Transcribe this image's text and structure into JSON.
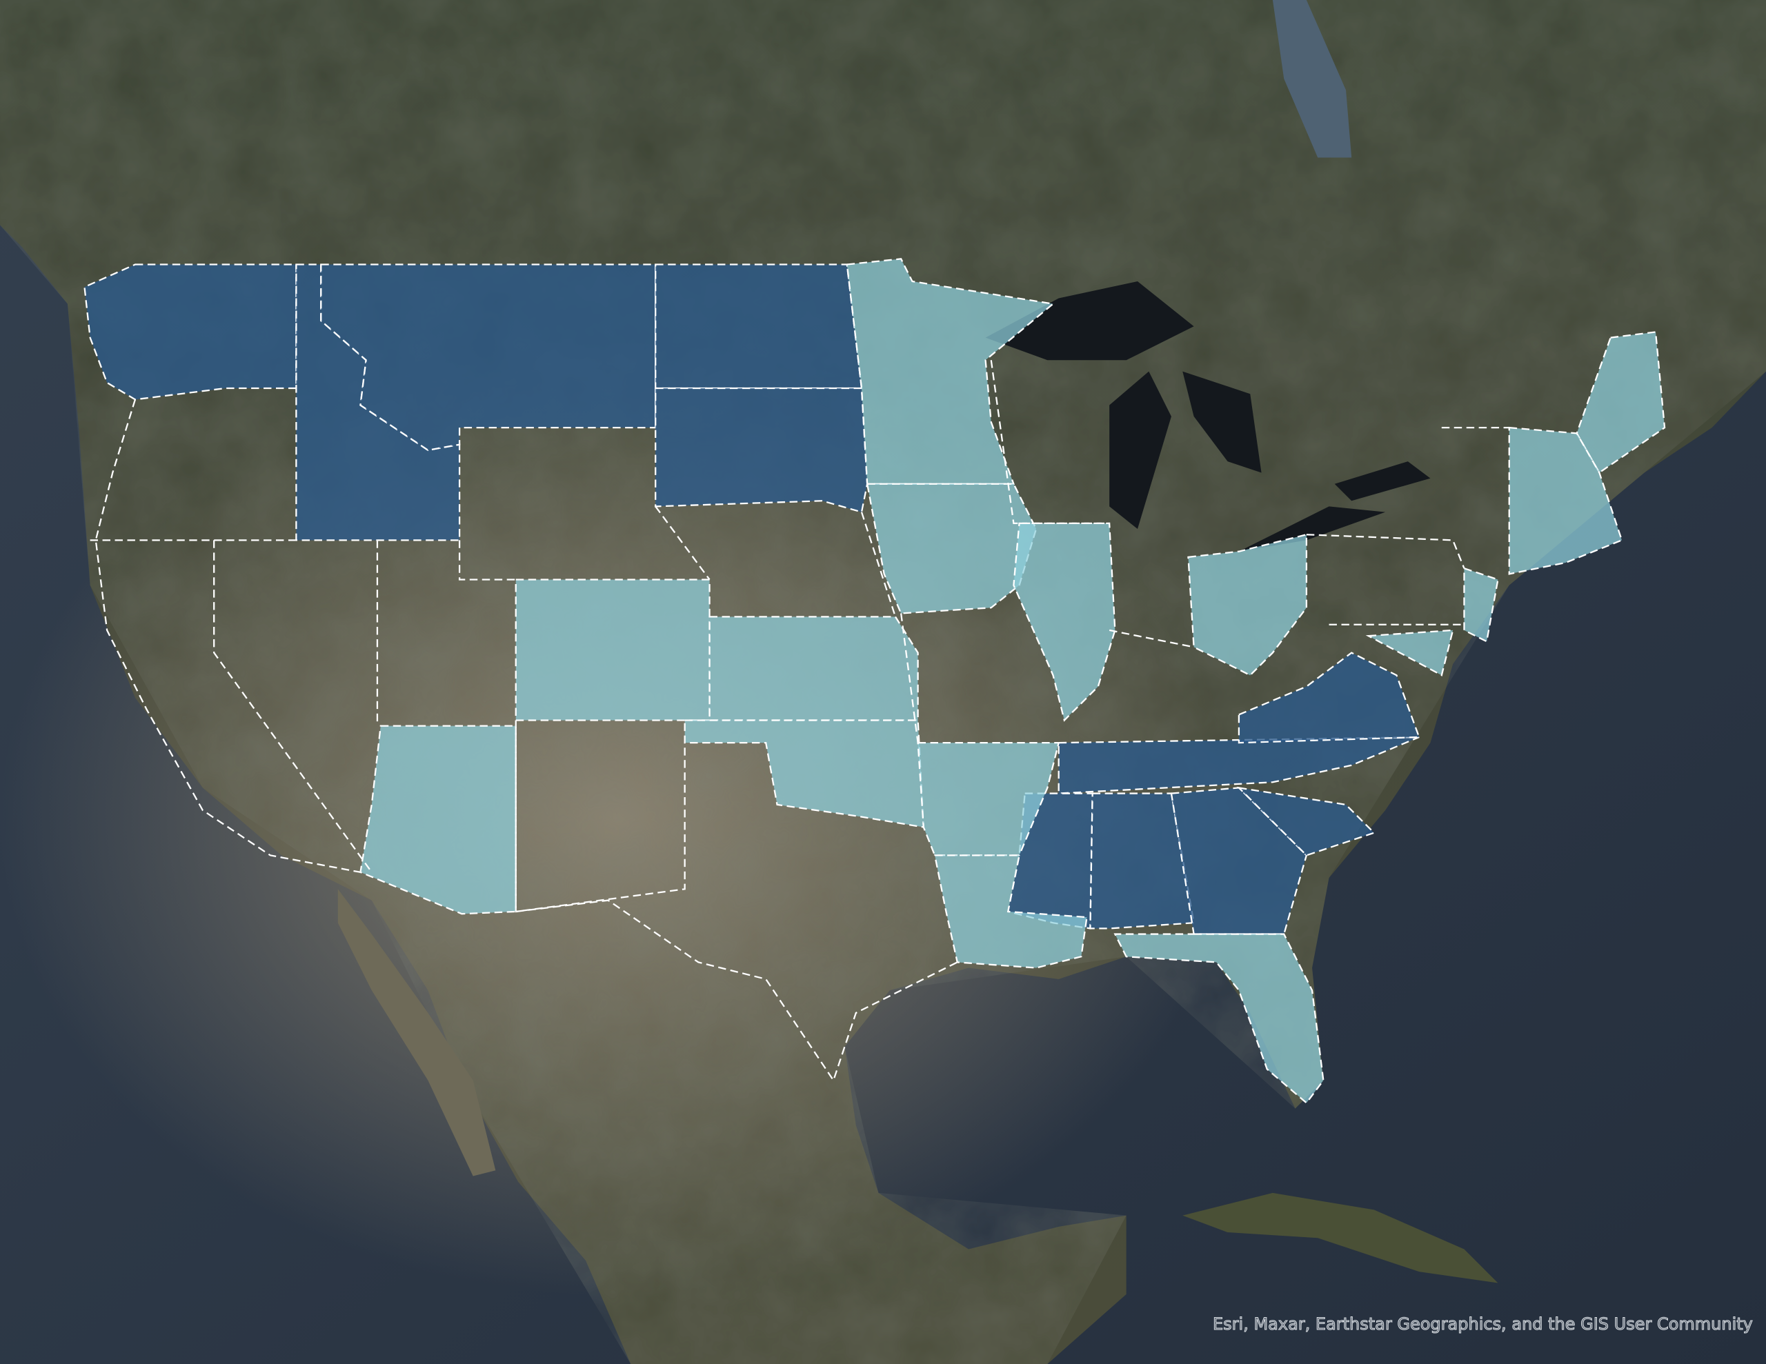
{
  "map": {
    "basemap": "satellite imagery",
    "attribution": "Esri, Maxar, Earthstar Geographics, and the GIS User Community",
    "colors": {
      "category_dark": "#2a5a8c",
      "category_light": "#8fd0dc",
      "boundary": "#ffffff",
      "ocean": "#2c3848",
      "land": "#3f4733"
    },
    "states_dark": [
      "Washington",
      "Idaho",
      "Montana",
      "North Dakota",
      "South Dakota",
      "Tennessee",
      "Virginia",
      "Mississippi",
      "Alabama",
      "Georgia",
      "South Carolina"
    ],
    "states_light": [
      "Minnesota",
      "Iowa",
      "Illinois",
      "Ohio",
      "Colorado",
      "Kansas",
      "Oklahoma",
      "Arkansas",
      "Louisiana",
      "Arizona",
      "Florida",
      "Maine",
      "New Hampshire",
      "Vermont",
      "Massachusetts",
      "Connecticut",
      "Rhode Island",
      "New Jersey",
      "Maryland",
      "Delaware"
    ]
  }
}
